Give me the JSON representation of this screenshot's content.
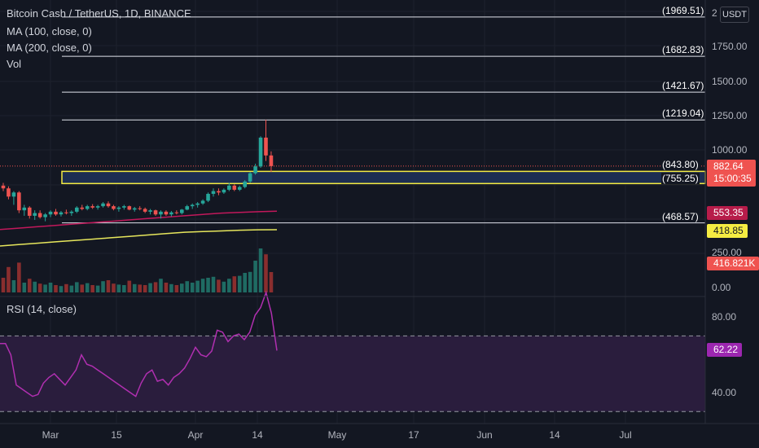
{
  "header": {
    "symbol_line": "Bitcoin Cash / TetherUS, 1D, BINANCE",
    "ma100": "MA (100, close, 0)",
    "ma200": "MA (200, close, 0)",
    "vol": "Vol",
    "rsi": "RSI (14, close)",
    "currency_button": "USDT",
    "top_axis_partial": "2"
  },
  "colors": {
    "background": "#131722",
    "up": "#26a69a",
    "down": "#ef5350",
    "ma100": "#c2185b",
    "ma200": "#e6e65c",
    "rsi_line": "#b02fb0",
    "rsi_band": "#2a1d3d",
    "zone_fill": "#1d2e52",
    "zone_border": "#f5ec42"
  },
  "price_tags": {
    "last_price": "882.64",
    "countdown": "15:00:35",
    "ma100": "553.35",
    "ma200": "418.85",
    "volume": "416.821K",
    "rsi": "62.22"
  },
  "chart_data": {
    "type": "candlestick",
    "y_axis": {
      "ticks": [
        "1750.00",
        "1500.00",
        "1250.00",
        "1000.00",
        "250.00",
        "0.00"
      ],
      "ylim": [
        0,
        2050
      ]
    },
    "rsi_axis": {
      "ticks": [
        "80.00",
        "40.00"
      ],
      "ylim": [
        22,
        100
      ],
      "upper_band": 70,
      "lower_band": 30
    },
    "x_axis": {
      "labels": [
        "Mar",
        "15",
        "Apr",
        "14",
        "May",
        "17",
        "Jun",
        "14",
        "Jul"
      ]
    },
    "horizontal_levels": [
      {
        "label": "(1969.51)",
        "value": 1969.51
      },
      {
        "label": "(1682.83)",
        "value": 1682.83
      },
      {
        "label": "(1421.67)",
        "value": 1421.67
      },
      {
        "label": "(1219.04)",
        "value": 1219.04
      },
      {
        "label": "(843.80)",
        "value": 843.8
      },
      {
        "label": "(755.25)",
        "value": 755.25
      },
      {
        "label": "(468.57)",
        "value": 468.57
      }
    ],
    "zone": {
      "top": 843.8,
      "bottom": 755.25
    },
    "candles": [
      [
        740,
        760,
        700,
        720
      ],
      [
        720,
        735,
        640,
        660
      ],
      [
        660,
        700,
        600,
        690
      ],
      [
        690,
        700,
        540,
        560
      ],
      [
        560,
        600,
        520,
        580
      ],
      [
        580,
        590,
        500,
        520
      ],
      [
        520,
        560,
        490,
        540
      ],
      [
        540,
        560,
        500,
        510
      ],
      [
        510,
        540,
        480,
        530
      ],
      [
        530,
        560,
        510,
        550
      ],
      [
        550,
        570,
        520,
        530
      ],
      [
        530,
        555,
        515,
        545
      ],
      [
        545,
        565,
        530,
        540
      ],
      [
        540,
        560,
        520,
        550
      ],
      [
        550,
        590,
        540,
        580
      ],
      [
        580,
        600,
        560,
        570
      ],
      [
        570,
        600,
        560,
        590
      ],
      [
        590,
        605,
        570,
        580
      ],
      [
        580,
        600,
        565,
        590
      ],
      [
        590,
        620,
        580,
        610
      ],
      [
        610,
        625,
        580,
        590
      ],
      [
        590,
        600,
        560,
        570
      ],
      [
        570,
        590,
        550,
        580
      ],
      [
        580,
        600,
        565,
        590
      ],
      [
        590,
        595,
        560,
        565
      ],
      [
        565,
        585,
        550,
        575
      ],
      [
        575,
        590,
        560,
        570
      ],
      [
        570,
        580,
        540,
        550
      ],
      [
        550,
        570,
        530,
        560
      ],
      [
        560,
        565,
        520,
        530
      ],
      [
        530,
        560,
        500,
        550
      ],
      [
        550,
        560,
        520,
        530
      ],
      [
        530,
        555,
        515,
        545
      ],
      [
        545,
        560,
        530,
        540
      ],
      [
        540,
        570,
        530,
        565
      ],
      [
        565,
        600,
        560,
        590
      ],
      [
        590,
        610,
        570,
        600
      ],
      [
        600,
        620,
        580,
        610
      ],
      [
        610,
        640,
        600,
        630
      ],
      [
        630,
        690,
        620,
        680
      ],
      [
        680,
        720,
        660,
        700
      ],
      [
        700,
        720,
        670,
        690
      ],
      [
        690,
        720,
        680,
        710
      ],
      [
        710,
        760,
        700,
        740
      ],
      [
        740,
        750,
        700,
        710
      ],
      [
        710,
        740,
        700,
        730
      ],
      [
        730,
        780,
        720,
        770
      ],
      [
        770,
        840,
        760,
        830
      ],
      [
        830,
        900,
        820,
        880
      ],
      [
        880,
        1100,
        870,
        1090
      ],
      [
        1090,
        1220,
        920,
        960
      ],
      [
        960,
        990,
        840,
        882.64
      ]
    ],
    "volume": {
      "max": 1000,
      "values": [
        300,
        520,
        250,
        610,
        200,
        280,
        220,
        180,
        160,
        200,
        150,
        130,
        170,
        140,
        210,
        160,
        190,
        150,
        140,
        230,
        250,
        180,
        160,
        150,
        240,
        170,
        160,
        150,
        190,
        210,
        280,
        200,
        170,
        150,
        180,
        230,
        200,
        240,
        280,
        300,
        320,
        260,
        220,
        280,
        330,
        340,
        400,
        420,
        650,
        900,
        780,
        416.821
      ]
    },
    "ma100": [
      420,
      430,
      440,
      450,
      460,
      470,
      480,
      490,
      500,
      510,
      520,
      530,
      540,
      545,
      550,
      553.35
    ],
    "ma200": [
      300,
      310,
      320,
      330,
      340,
      350,
      360,
      370,
      380,
      390,
      400,
      405,
      410,
      415,
      418,
      418.85
    ],
    "rsi": [
      66,
      66,
      60,
      44,
      42,
      40,
      38,
      39,
      45,
      48,
      50,
      47,
      44,
      48,
      52,
      60,
      55,
      54,
      52,
      50,
      48,
      46,
      44,
      42,
      40,
      38,
      45,
      50,
      52,
      46,
      47,
      44,
      48,
      50,
      53,
      58,
      64,
      60,
      59,
      62,
      73,
      72,
      67,
      70,
      71,
      68,
      72,
      81,
      85,
      93,
      82,
      62.22
    ]
  }
}
